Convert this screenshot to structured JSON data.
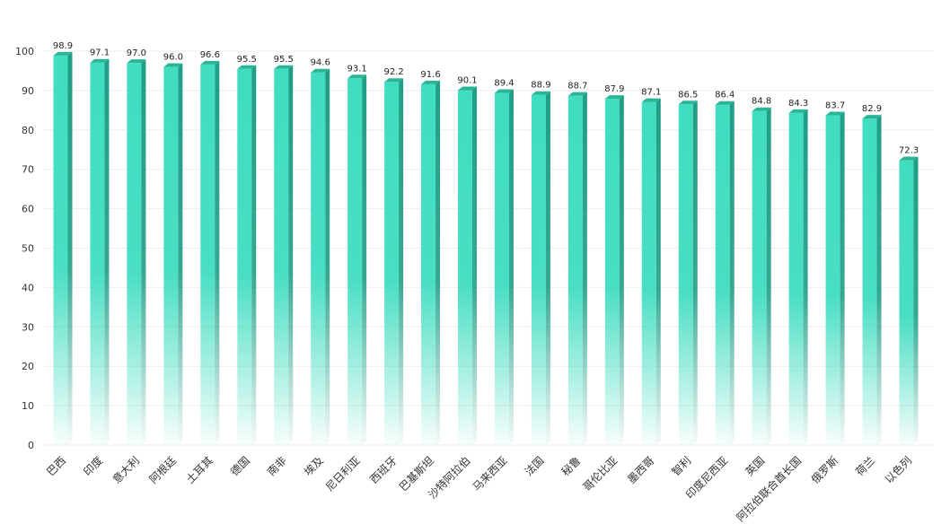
{
  "chart_data": {
    "type": "bar",
    "categories": [
      "巴西",
      "印度",
      "意大利",
      "阿根廷",
      "土耳其",
      "德国",
      "南非",
      "埃及",
      "尼日利亚",
      "西班牙",
      "巴基斯坦",
      "沙特阿拉伯",
      "马来西亚",
      "法国",
      "秘鲁",
      "哥伦比亚",
      "墨西哥",
      "智利",
      "印度尼西亚",
      "英国",
      "阿拉伯联合酋长国",
      "俄罗斯",
      "荷兰",
      "以色列"
    ],
    "values": [
      98.9,
      97.1,
      97.0,
      96.0,
      96.6,
      95.5,
      95.5,
      94.6,
      93.1,
      92.2,
      91.6,
      90.1,
      89.4,
      88.9,
      88.7,
      87.9,
      87.1,
      86.5,
      86.4,
      84.8,
      84.3,
      83.7,
      82.9,
      72.3
    ],
    "value_labels": [
      "98.9",
      "97.1",
      "97.0",
      "96.0",
      "96.6",
      "95.5",
      "95.5",
      "94.6",
      "93.1",
      "92.2",
      "91.6",
      "90.1",
      "89.4",
      "88.9",
      "88.7",
      "87.9",
      "87.1",
      "86.5",
      "86.4",
      "84.8",
      "84.3",
      "83.7",
      "82.9",
      "72.3"
    ],
    "ylim": [
      0,
      100
    ],
    "yticks": [
      0,
      10,
      20,
      30,
      40,
      50,
      60,
      70,
      80,
      90,
      100
    ],
    "ytick_labels": [
      "0",
      "10",
      "20",
      "30",
      "40",
      "50",
      "60",
      "70",
      "80",
      "90",
      "100"
    ],
    "grid": true,
    "colors": {
      "bar_front": "#40ddc0",
      "bar_side": "#1f9e86",
      "bar_top": "#2bb597",
      "grid": "#eeeeee"
    }
  }
}
